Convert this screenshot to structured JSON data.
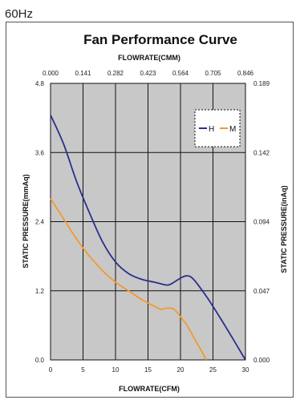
{
  "header": {
    "frequency": "60Hz"
  },
  "chart_data": {
    "type": "line",
    "title": "Fan Performance Curve",
    "xlabel": "FLOWRATE(CFM)",
    "x2label": "FLOWRATE(CMM)",
    "ylabel": "STATIC PRESSURE(mmAq)",
    "y2label": "STATIC PRESSURE(inAq)",
    "xlim": [
      0,
      30
    ],
    "ylim": [
      0,
      4.8
    ],
    "x_ticks": [
      "0",
      "5",
      "10",
      "15",
      "20",
      "25",
      "30"
    ],
    "x2_ticks": [
      "0.000",
      "0.141",
      "0.282",
      "0.423",
      "0.564",
      "0.705",
      "0.846"
    ],
    "y_ticks": [
      "0.0",
      "1.2",
      "2.4",
      "3.6",
      "4.8"
    ],
    "y2_ticks": [
      "0.000",
      "0.047",
      "0.094",
      "0.142",
      "0.189"
    ],
    "grid": true,
    "legend_position": "top-right",
    "series": [
      {
        "name": "H",
        "color": "#2b2f8c",
        "x": [
          0,
          2,
          4,
          6,
          8,
          10,
          12,
          14,
          16,
          18,
          19,
          20,
          21,
          22,
          24,
          26,
          28,
          30
        ],
        "y": [
          4.25,
          3.75,
          3.1,
          2.55,
          2.05,
          1.7,
          1.5,
          1.4,
          1.35,
          1.3,
          1.35,
          1.42,
          1.46,
          1.4,
          1.1,
          0.75,
          0.38,
          0.0
        ]
      },
      {
        "name": "M",
        "color": "#f29a2e",
        "x": [
          0,
          2,
          4,
          6,
          8,
          10,
          12,
          14,
          16,
          17,
          18,
          19,
          20,
          21,
          22,
          23,
          24
        ],
        "y": [
          2.8,
          2.45,
          2.1,
          1.8,
          1.55,
          1.35,
          1.2,
          1.05,
          0.93,
          0.88,
          0.9,
          0.88,
          0.75,
          0.6,
          0.4,
          0.2,
          0.0
        ]
      }
    ]
  }
}
